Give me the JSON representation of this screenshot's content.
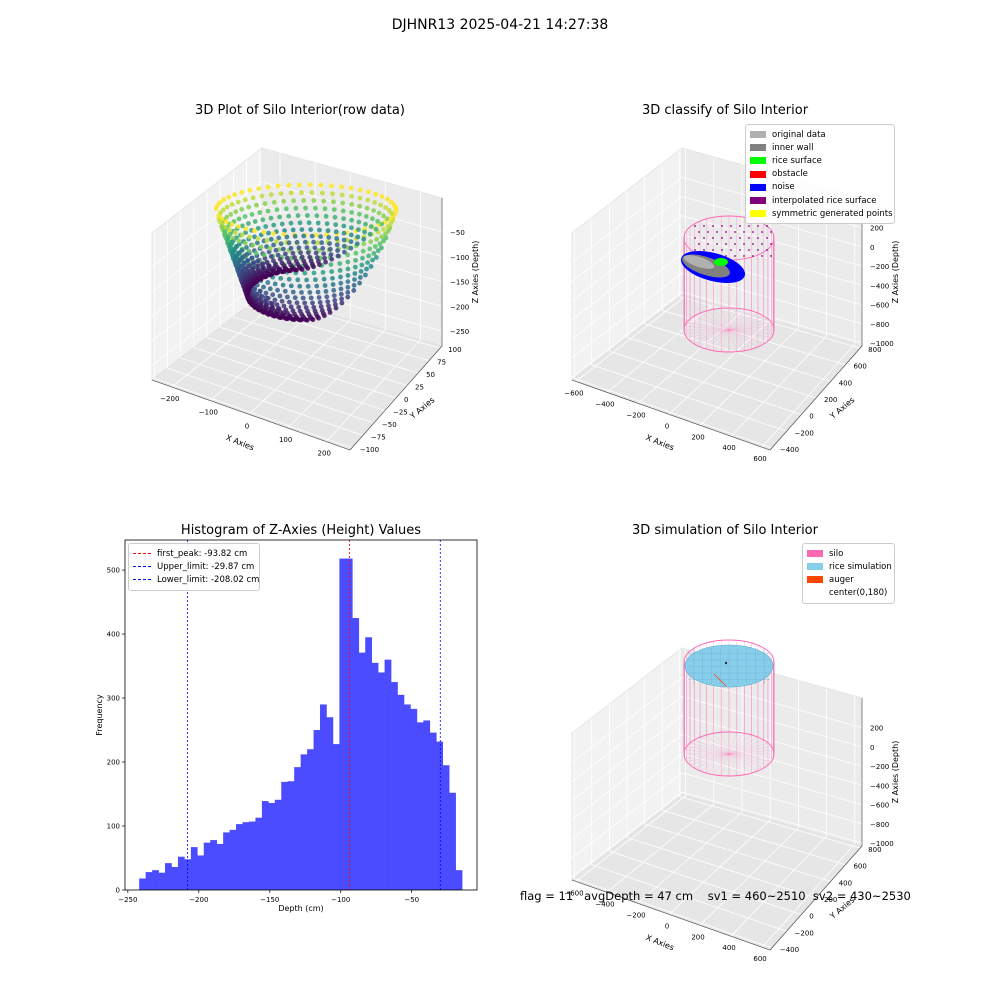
{
  "suptitle": "DJHNR13 2025-04-21 14:27:38",
  "chart_data": [
    {
      "type": "scatter",
      "title": "3D Plot of Silo Interior(row data)",
      "xlabel": "X Axies",
      "ylabel": "Y Axies",
      "zlabel": "Z Axies (Depth)",
      "xticks": [
        "−200",
        "−100",
        "0",
        "100",
        "200"
      ],
      "yticks": [
        "100",
        "75",
        "50",
        "25",
        "0",
        "−25",
        "−50",
        "−75",
        "−100"
      ],
      "zticks": [
        "−50",
        "−100",
        "−150",
        "−200",
        "−250"
      ],
      "colormap": "viridis",
      "shape": "bowl",
      "z_range": [
        -250,
        -30
      ]
    },
    {
      "type": "scatter",
      "title": "3D classify of Silo Interior",
      "xlabel": "X Axies",
      "ylabel": "Y Axies",
      "zlabel": "Z Axies (Depth)",
      "xticks": [
        "−600",
        "−400",
        "−200",
        "0",
        "200",
        "400",
        "600"
      ],
      "yticks": [
        "800",
        "600",
        "400",
        "200",
        "0",
        "−200",
        "−400"
      ],
      "zticks": [
        "200",
        "0",
        "−200",
        "−400",
        "−600",
        "−800",
        "−1000"
      ],
      "legend": [
        {
          "label": "original data",
          "color": "#b0b0b0"
        },
        {
          "label": "inner wall",
          "color": "#808080"
        },
        {
          "label": "rice surface",
          "color": "#00ff00"
        },
        {
          "label": "obstacle",
          "color": "#ff0000"
        },
        {
          "label": "noise",
          "color": "#0000ff"
        },
        {
          "label": "interpolated rice surface",
          "color": "#800080"
        },
        {
          "label": "symmetric generated points",
          "color": "#ffff00"
        }
      ]
    },
    {
      "type": "bar",
      "title": "Histogram of Z-Axies (Height) Values",
      "xlabel": "Depth (cm)",
      "ylabel": "Frequency",
      "xlim": [
        -252,
        -4
      ],
      "ylim": [
        0,
        547
      ],
      "xticks": [
        -250,
        -200,
        -150,
        -100,
        -50
      ],
      "xtick_labels": [
        "−250",
        "−200",
        "−150",
        "−100",
        "−50"
      ],
      "yticks": [
        0,
        100,
        200,
        300,
        400,
        500
      ],
      "bar_color": "#4b4bff",
      "bin_start": -242,
      "bin_width": 4.55,
      "values": [
        18,
        28,
        31,
        27,
        42,
        36,
        52,
        48,
        67,
        54,
        74,
        78,
        72,
        90,
        94,
        103,
        106,
        107,
        113,
        139,
        136,
        141,
        169,
        170,
        192,
        212,
        220,
        250,
        290,
        270,
        228,
        518,
        518,
        425,
        371,
        395,
        355,
        340,
        360,
        325,
        305,
        290,
        283,
        262,
        265,
        246,
        232,
        195,
        152,
        31
      ],
      "vlines": [
        {
          "label": "first_peak: -93.82 cm",
          "x": -93.82,
          "color": "#ff0000"
        },
        {
          "label": "Upper_limit: -29.87 cm",
          "x": -29.87,
          "color": "#0000ff"
        },
        {
          "label": "Lower_limit: -208.02 cm",
          "x": -208.02,
          "color": "#0000ff"
        }
      ]
    },
    {
      "type": "scatter",
      "title": "3D simulation of Silo Interior",
      "xlabel": "X Axies",
      "ylabel": "Y Axies",
      "zlabel": "Z Axies (Depth)",
      "xticks": [
        "−600",
        "−400",
        "−200",
        "0",
        "200",
        "400",
        "600"
      ],
      "yticks": [
        "800",
        "600",
        "400",
        "200",
        "0",
        "−200",
        "−400"
      ],
      "zticks": [
        "200",
        "0",
        "−200",
        "−400",
        "−600",
        "−800",
        "−1000"
      ],
      "legend": [
        {
          "label": "silo",
          "color": "#ff69b4"
        },
        {
          "label": "rice simulation",
          "color": "#87ceeb"
        },
        {
          "label": "auger",
          "color": "#ff4500"
        },
        {
          "label": "center(0,180)",
          "color": ""
        }
      ]
    }
  ],
  "footer": "flag = 11   avgDepth = 47 cm    sv1 = 460~2510  sv2 = 430~2530"
}
